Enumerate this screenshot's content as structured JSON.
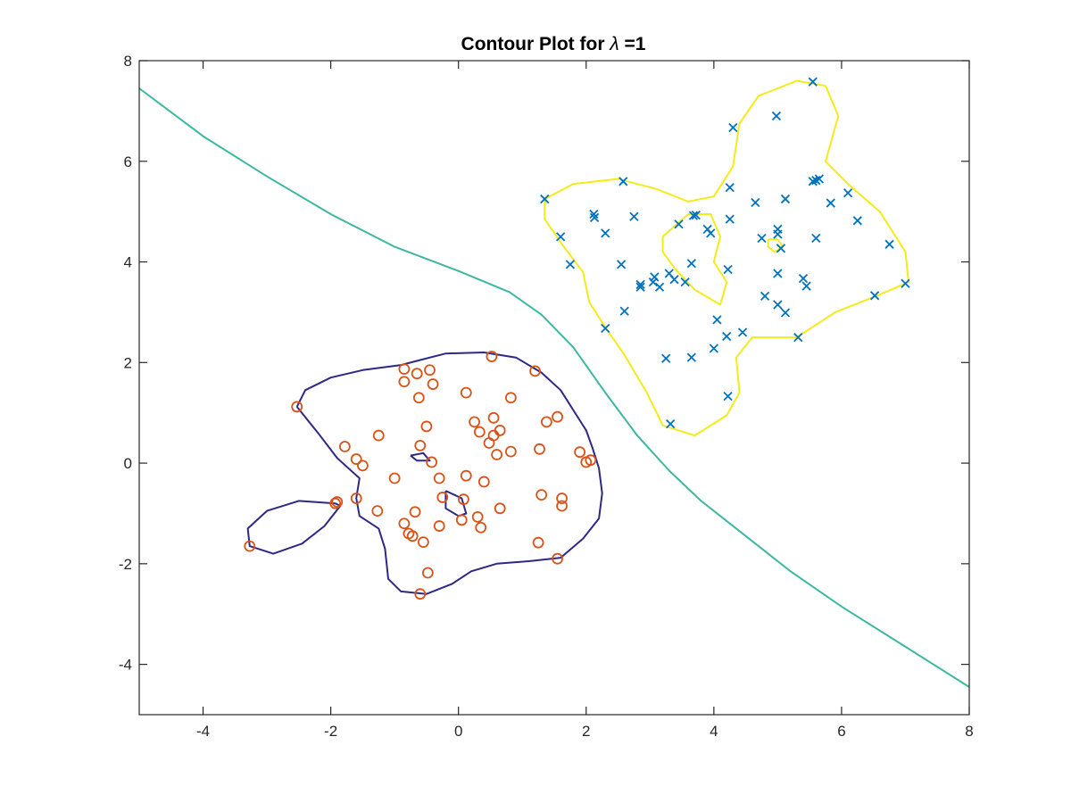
{
  "chart_data": {
    "type": "scatter",
    "title": "Contour Plot for λ =1",
    "title_prefix": "Contour Plot for ",
    "title_symbol": "λ",
    "title_suffix": " =1",
    "xlabel": "",
    "ylabel": "",
    "xlim": [
      -5,
      8
    ],
    "ylim": [
      -5,
      8
    ],
    "xticks": [
      -4,
      -2,
      0,
      2,
      4,
      6,
      8
    ],
    "yticks": [
      -4,
      -2,
      0,
      2,
      4,
      6,
      8
    ],
    "xtick_labels": [
      "-4",
      "-2",
      "0",
      "2",
      "4",
      "6",
      "8"
    ],
    "ytick_labels": [
      "-4",
      "-2",
      "0",
      "2",
      "4",
      "6",
      "8"
    ],
    "grid": false,
    "legend": "none",
    "series": [
      {
        "marker": "o",
        "color": "#D95319",
        "points": [
          [
            -2.53,
            1.12
          ],
          [
            -1.9,
            -0.77
          ],
          [
            -1.93,
            -0.8
          ],
          [
            -3.27,
            -1.65
          ],
          [
            -1.78,
            0.33
          ],
          [
            -1.6,
            0.08
          ],
          [
            -1.5,
            -0.05
          ],
          [
            -1.6,
            -0.7
          ],
          [
            -1.25,
            0.55
          ],
          [
            -1.27,
            -0.95
          ],
          [
            -1.0,
            -0.3
          ],
          [
            -0.85,
            1.87
          ],
          [
            -0.85,
            1.62
          ],
          [
            -0.65,
            1.78
          ],
          [
            -0.45,
            1.85
          ],
          [
            -0.4,
            1.57
          ],
          [
            -0.62,
            1.3
          ],
          [
            -0.5,
            0.73
          ],
          [
            -0.6,
            0.35
          ],
          [
            -0.42,
            0.02
          ],
          [
            -0.3,
            -0.3
          ],
          [
            -0.25,
            -0.68
          ],
          [
            -0.68,
            -0.97
          ],
          [
            -0.85,
            -1.2
          ],
          [
            -0.78,
            -1.4
          ],
          [
            -0.72,
            -1.45
          ],
          [
            -0.55,
            -1.57
          ],
          [
            -0.3,
            -1.25
          ],
          [
            -0.48,
            -2.18
          ],
          [
            -0.6,
            -2.6
          ],
          [
            0.05,
            -1.13
          ],
          [
            0.08,
            -0.72
          ],
          [
            0.12,
            -0.25
          ],
          [
            0.12,
            1.4
          ],
          [
            0.25,
            0.82
          ],
          [
            0.33,
            0.62
          ],
          [
            0.3,
            -1.07
          ],
          [
            0.35,
            -1.28
          ],
          [
            0.4,
            -0.37
          ],
          [
            0.48,
            0.4
          ],
          [
            0.55,
            0.55
          ],
          [
            0.55,
            0.9
          ],
          [
            0.6,
            0.17
          ],
          [
            0.65,
            0.65
          ],
          [
            0.65,
            -0.9
          ],
          [
            0.52,
            2.12
          ],
          [
            0.82,
            1.3
          ],
          [
            0.82,
            0.23
          ],
          [
            1.2,
            1.83
          ],
          [
            1.27,
            0.28
          ],
          [
            1.3,
            -0.63
          ],
          [
            1.25,
            -1.58
          ],
          [
            1.38,
            0.82
          ],
          [
            1.55,
            0.92
          ],
          [
            1.62,
            -0.7
          ],
          [
            1.62,
            -0.85
          ],
          [
            1.55,
            -1.9
          ],
          [
            1.9,
            0.22
          ],
          [
            2.0,
            0.02
          ],
          [
            2.07,
            0.06
          ]
        ]
      },
      {
        "marker": "x",
        "color": "#0072BD",
        "points": [
          [
            1.35,
            5.25
          ],
          [
            1.6,
            4.5
          ],
          [
            1.75,
            3.95
          ],
          [
            2.12,
            4.95
          ],
          [
            2.13,
            4.88
          ],
          [
            2.3,
            4.57
          ],
          [
            2.3,
            2.68
          ],
          [
            2.58,
            5.6
          ],
          [
            2.55,
            3.95
          ],
          [
            2.6,
            3.02
          ],
          [
            2.75,
            4.9
          ],
          [
            2.85,
            3.5
          ],
          [
            2.85,
            3.55
          ],
          [
            3.05,
            3.6
          ],
          [
            3.07,
            3.7
          ],
          [
            3.15,
            3.5
          ],
          [
            3.25,
            2.08
          ],
          [
            3.3,
            3.77
          ],
          [
            3.32,
            0.78
          ],
          [
            3.38,
            3.65
          ],
          [
            3.45,
            4.75
          ],
          [
            3.55,
            3.6
          ],
          [
            3.65,
            3.97
          ],
          [
            3.68,
            4.92
          ],
          [
            3.72,
            4.93
          ],
          [
            3.65,
            2.1
          ],
          [
            3.9,
            4.65
          ],
          [
            3.95,
            4.57
          ],
          [
            4.0,
            2.28
          ],
          [
            4.05,
            2.85
          ],
          [
            4.2,
            2.52
          ],
          [
            4.22,
            3.85
          ],
          [
            4.22,
            1.33
          ],
          [
            4.25,
            4.85
          ],
          [
            4.25,
            5.48
          ],
          [
            4.3,
            6.67
          ],
          [
            4.45,
            2.6
          ],
          [
            4.65,
            5.18
          ],
          [
            4.75,
            4.47
          ],
          [
            4.8,
            3.32
          ],
          [
            4.98,
            6.9
          ],
          [
            5.0,
            4.65
          ],
          [
            5.0,
            4.55
          ],
          [
            5.0,
            3.77
          ],
          [
            5.0,
            3.15
          ],
          [
            5.05,
            4.27
          ],
          [
            5.12,
            2.99
          ],
          [
            5.12,
            5.25
          ],
          [
            5.32,
            2.5
          ],
          [
            5.4,
            3.67
          ],
          [
            5.45,
            3.52
          ],
          [
            5.55,
            7.58
          ],
          [
            5.55,
            5.6
          ],
          [
            5.6,
            5.62
          ],
          [
            5.6,
            4.47
          ],
          [
            5.65,
            5.65
          ],
          [
            5.83,
            5.17
          ],
          [
            6.1,
            5.37
          ],
          [
            6.25,
            4.82
          ],
          [
            6.52,
            3.33
          ],
          [
            6.75,
            4.35
          ],
          [
            7.0,
            3.57
          ]
        ]
      }
    ],
    "contours": [
      {
        "color": "#3DB8A0",
        "points": [
          [
            -5,
            7.45
          ],
          [
            -4,
            6.5
          ],
          [
            -3,
            5.7
          ],
          [
            -2,
            4.95
          ],
          [
            -1,
            4.3
          ],
          [
            0,
            3.82
          ],
          [
            0.8,
            3.4
          ],
          [
            1.3,
            2.95
          ],
          [
            1.8,
            2.3
          ],
          [
            2.3,
            1.4
          ],
          [
            2.8,
            0.55
          ],
          [
            3.3,
            -0.15
          ],
          [
            3.8,
            -0.75
          ],
          [
            4.5,
            -1.45
          ],
          [
            5.2,
            -2.15
          ],
          [
            6,
            -2.85
          ],
          [
            7,
            -3.65
          ],
          [
            8,
            -4.45
          ]
        ]
      },
      {
        "color": "#2D2886",
        "points": [
          [
            -2.53,
            1.12
          ],
          [
            -2.4,
            1.45
          ],
          [
            -2.0,
            1.7
          ],
          [
            -1.5,
            1.85
          ],
          [
            -0.9,
            1.95
          ],
          [
            -0.6,
            2.05
          ],
          [
            -0.2,
            2.18
          ],
          [
            0.4,
            2.2
          ],
          [
            0.9,
            2.1
          ],
          [
            1.3,
            1.8
          ],
          [
            1.6,
            1.45
          ],
          [
            1.8,
            1.05
          ],
          [
            2.0,
            0.65
          ],
          [
            2.1,
            0.3
          ],
          [
            2.2,
            -0.1
          ],
          [
            2.25,
            -0.6
          ],
          [
            2.2,
            -1.1
          ],
          [
            1.95,
            -1.5
          ],
          [
            1.6,
            -1.88
          ],
          [
            1.1,
            -1.95
          ],
          [
            0.6,
            -2.0
          ],
          [
            0.2,
            -2.15
          ],
          [
            -0.1,
            -2.4
          ],
          [
            -0.5,
            -2.6
          ],
          [
            -0.9,
            -2.55
          ],
          [
            -1.1,
            -2.3
          ],
          [
            -1.15,
            -1.7
          ],
          [
            -1.25,
            -1.3
          ],
          [
            -1.55,
            -1.05
          ],
          [
            -1.6,
            -0.7
          ],
          [
            -1.55,
            -0.3
          ],
          [
            -1.9,
            0.1
          ],
          [
            -2.2,
            0.6
          ],
          [
            -2.53,
            1.12
          ]
        ]
      },
      {
        "color": "#2D2886",
        "points": [
          [
            -1.93,
            -0.8
          ],
          [
            -2.5,
            -0.75
          ],
          [
            -3.0,
            -0.95
          ],
          [
            -3.3,
            -1.3
          ],
          [
            -3.27,
            -1.65
          ],
          [
            -2.9,
            -1.8
          ],
          [
            -2.45,
            -1.6
          ],
          [
            -2.1,
            -1.25
          ],
          [
            -1.85,
            -0.85
          ],
          [
            -1.93,
            -0.8
          ]
        ]
      },
      {
        "color": "#2D2886",
        "points": [
          [
            -0.75,
            0.15
          ],
          [
            -0.55,
            0.2
          ],
          [
            -0.45,
            0.05
          ],
          [
            -0.65,
            0.05
          ],
          [
            -0.75,
            0.15
          ]
        ]
      },
      {
        "color": "#2D2886",
        "points": [
          [
            -0.2,
            -0.55
          ],
          [
            0.05,
            -0.7
          ],
          [
            0.12,
            -1.0
          ],
          [
            0.0,
            -1.05
          ],
          [
            -0.2,
            -0.9
          ],
          [
            -0.2,
            -0.55
          ]
        ]
      },
      {
        "color": "#F4EB1A",
        "points": [
          [
            1.35,
            5.25
          ],
          [
            1.8,
            5.55
          ],
          [
            2.5,
            5.65
          ],
          [
            3.1,
            5.45
          ],
          [
            3.6,
            5.2
          ],
          [
            4.0,
            5.3
          ],
          [
            4.3,
            5.9
          ],
          [
            4.4,
            6.75
          ],
          [
            4.7,
            7.3
          ],
          [
            5.3,
            7.6
          ],
          [
            5.75,
            7.5
          ],
          [
            5.95,
            6.9
          ],
          [
            5.75,
            6.0
          ],
          [
            6.1,
            5.55
          ],
          [
            6.6,
            5.0
          ],
          [
            7.0,
            4.2
          ],
          [
            7.05,
            3.6
          ],
          [
            6.6,
            3.35
          ],
          [
            5.9,
            3.0
          ],
          [
            5.3,
            2.5
          ],
          [
            4.6,
            2.5
          ],
          [
            4.35,
            2.1
          ],
          [
            4.4,
            1.4
          ],
          [
            4.2,
            0.95
          ],
          [
            3.7,
            0.55
          ],
          [
            3.2,
            0.75
          ],
          [
            2.95,
            1.4
          ],
          [
            2.6,
            2.15
          ],
          [
            2.3,
            2.7
          ],
          [
            2.05,
            3.2
          ],
          [
            1.95,
            3.8
          ],
          [
            1.65,
            4.3
          ],
          [
            1.35,
            4.85
          ],
          [
            1.35,
            5.25
          ]
        ]
      },
      {
        "color": "#F4EB1A",
        "points": [
          [
            3.2,
            4.5
          ],
          [
            3.6,
            4.95
          ],
          [
            3.95,
            4.95
          ],
          [
            4.1,
            4.5
          ],
          [
            4.0,
            4.0
          ],
          [
            4.2,
            3.6
          ],
          [
            4.1,
            3.15
          ],
          [
            3.7,
            3.45
          ],
          [
            3.4,
            3.85
          ],
          [
            3.2,
            4.2
          ],
          [
            3.2,
            4.5
          ]
        ]
      },
      {
        "color": "#F4EB1A",
        "points": [
          [
            4.85,
            4.45
          ],
          [
            5.0,
            4.45
          ],
          [
            5.08,
            4.3
          ],
          [
            4.95,
            4.2
          ],
          [
            4.85,
            4.3
          ],
          [
            4.85,
            4.45
          ]
        ]
      }
    ]
  }
}
